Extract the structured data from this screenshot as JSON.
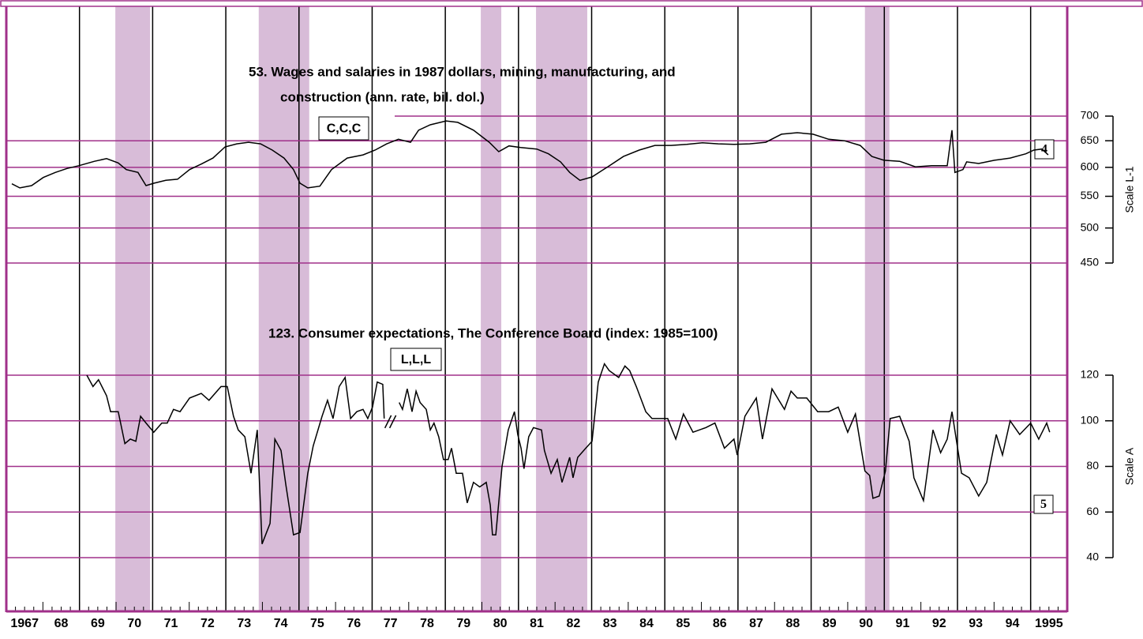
{
  "chart_data": {
    "type": "line",
    "xlim": [
      1967,
      1996
    ],
    "xticks": [
      {
        "value": 1967,
        "label": "1967"
      },
      {
        "value": 1968,
        "label": "68"
      },
      {
        "value": 1969,
        "label": "69"
      },
      {
        "value": 1970,
        "label": "70"
      },
      {
        "value": 1971,
        "label": "71"
      },
      {
        "value": 1972,
        "label": "72"
      },
      {
        "value": 1973,
        "label": "73"
      },
      {
        "value": 1974,
        "label": "74"
      },
      {
        "value": 1975,
        "label": "75"
      },
      {
        "value": 1976,
        "label": "76"
      },
      {
        "value": 1977,
        "label": "77"
      },
      {
        "value": 1978,
        "label": "78"
      },
      {
        "value": 1979,
        "label": "79"
      },
      {
        "value": 1980,
        "label": "80"
      },
      {
        "value": 1981,
        "label": "81"
      },
      {
        "value": 1982,
        "label": "82"
      },
      {
        "value": 1983,
        "label": "83"
      },
      {
        "value": 1984,
        "label": "84"
      },
      {
        "value": 1985,
        "label": "85"
      },
      {
        "value": 1986,
        "label": "86"
      },
      {
        "value": 1987,
        "label": "87"
      },
      {
        "value": 1988,
        "label": "88"
      },
      {
        "value": 1989,
        "label": "89"
      },
      {
        "value": 1990,
        "label": "90"
      },
      {
        "value": 1991,
        "label": "91"
      },
      {
        "value": 1992,
        "label": "92"
      },
      {
        "value": 1993,
        "label": "93"
      },
      {
        "value": 1994,
        "label": "94"
      },
      1995
    ],
    "shading": [
      [
        1969.98,
        1970.93
      ],
      [
        1973.9,
        1975.28
      ],
      [
        1979.97,
        1980.53
      ],
      [
        1981.48,
        1982.88
      ],
      [
        1990.47,
        1991.14
      ]
    ],
    "shading_color": "#d8bcd8",
    "grid_color": "#a0308a",
    "panels": [
      {
        "title": [
          "53. Wages and salaries in 1987 dollars, mining, manufacturing, and",
          "construction (ann. rate, bil. dol.)"
        ],
        "annotation": "C,C,C",
        "box_label": "4",
        "ylabel": "Scale L-1",
        "log_scale": true,
        "ylim": [
          450,
          700
        ],
        "yticks": [
          700,
          650,
          600,
          550,
          500,
          450
        ],
        "color": "#000000",
        "x": [
          1967.15,
          1967.37,
          1967.69,
          1968.01,
          1968.34,
          1968.66,
          1968.98,
          1969.41,
          1969.74,
          1970.06,
          1970.28,
          1970.6,
          1970.82,
          1971.03,
          1971.36,
          1971.68,
          1972.01,
          1972.33,
          1972.65,
          1972.98,
          1973.3,
          1973.62,
          1973.95,
          1974.27,
          1974.59,
          1974.85,
          1975.03,
          1975.24,
          1975.57,
          1975.89,
          1976.32,
          1976.75,
          1977.08,
          1977.4,
          1977.72,
          1978.05,
          1978.27,
          1978.59,
          1979.02,
          1979.34,
          1979.77,
          1980.2,
          1980.46,
          1980.74,
          1981.06,
          1981.5,
          1981.82,
          1982.15,
          1982.4,
          1982.68,
          1983.01,
          1983.44,
          1983.87,
          1984.3,
          1984.73,
          1985.17,
          1985.6,
          1986.03,
          1986.46,
          1986.89,
          1987.32,
          1987.76,
          1988.19,
          1988.62,
          1989.05,
          1989.48,
          1989.91,
          1990.34,
          1990.66,
          1990.99,
          1991.42,
          1991.85,
          1992.29,
          1992.72,
          1992.85,
          1992.93,
          1993.15,
          1993.25,
          1993.58,
          1994.01,
          1994.44,
          1994.87,
          1995.09,
          1995.31,
          1995.48
        ],
        "values": [
          571,
          564,
          568,
          582,
          591,
          598,
          603,
          611,
          616,
          608,
          596,
          591,
          568,
          572,
          577,
          579,
          596,
          606,
          617,
          638,
          644,
          647,
          644,
          632,
          617,
          596,
          572,
          564,
          567,
          596,
          617,
          623,
          632,
          644,
          653,
          647,
          671,
          682,
          690,
          687,
          671,
          647,
          629,
          640,
          637,
          634,
          625,
          610,
          591,
          577,
          583,
          601,
          620,
          632,
          641,
          641,
          643,
          646,
          644,
          643,
          644,
          647,
          663,
          666,
          663,
          653,
          650,
          641,
          620,
          613,
          611,
          601,
          603,
          603,
          671,
          591,
          596,
          610,
          607,
          613,
          617,
          625,
          632,
          634,
          623
        ]
      },
      {
        "title": [
          "123. Consumer expectations, The Conference Board (index: 1985=100)"
        ],
        "annotation": "L,L,L",
        "box_label": "5",
        "ylabel": "Scale A",
        "log_scale": false,
        "ylim": [
          40,
          120
        ],
        "yticks": [
          120,
          100,
          80,
          60,
          40
        ],
        "color": "#000000",
        "x": [
          1969.2,
          1969.37,
          1969.52,
          1969.74,
          1969.85,
          1970.06,
          1970.24,
          1970.39,
          1970.54,
          1970.67,
          1970.82,
          1971.03,
          1971.25,
          1971.4,
          1971.57,
          1971.75,
          1972.01,
          1972.33,
          1972.54,
          1972.87,
          1973.04,
          1973.21,
          1973.34,
          1973.52,
          1973.69,
          1973.86,
          1973.99,
          1974.21,
          1974.34,
          1974.51,
          1974.64,
          1974.85,
          1975.03,
          1975.24,
          1975.39,
          1975.63,
          1975.78,
          1975.93,
          1976.1,
          1976.26,
          1976.41,
          1976.58,
          1976.75,
          1976.88,
          1977.01,
          1977.14,
          1977.29,
          1977.33,
          1977.5,
          1977.74,
          1977.83,
          1977.96,
          1978.09,
          1978.2,
          1978.31,
          1978.48,
          1978.59,
          1978.69,
          1978.82,
          1978.95,
          1979.08,
          1979.17,
          1979.3,
          1979.47,
          1979.6,
          1979.77,
          1979.94,
          1980.12,
          1980.23,
          1980.29,
          1980.38,
          1980.55,
          1980.72,
          1980.89,
          1980.98,
          1981.07,
          1981.15,
          1981.28,
          1981.41,
          1981.63,
          1981.71,
          1981.89,
          1982.06,
          1982.19,
          1982.4,
          1982.49,
          1982.62,
          1982.84,
          1983.01,
          1983.18,
          1983.35,
          1983.48,
          1983.74,
          1983.91,
          1984.04,
          1984.22,
          1984.48,
          1984.65,
          1984.86,
          1985.08,
          1985.3,
          1985.51,
          1985.77,
          1986.12,
          1986.37,
          1986.63,
          1986.89,
          1986.98,
          1987.19,
          1987.5,
          1987.67,
          1987.93,
          1988.27,
          1988.45,
          1988.62,
          1988.88,
          1989.18,
          1989.48,
          1989.74,
          1990.0,
          1990.21,
          1990.47,
          1990.6,
          1990.69,
          1990.86,
          1991.03,
          1991.16,
          1991.42,
          1991.68,
          1991.81,
          1992.07,
          1992.33,
          1992.54,
          1992.72,
          1992.85,
          1993.11,
          1993.32,
          1993.58,
          1993.8,
          1994.06,
          1994.23,
          1994.44,
          1994.7,
          1995.0,
          1995.22,
          1995.44,
          1995.52
        ],
        "values": [
          120,
          115,
          118,
          111,
          104,
          104,
          90,
          92,
          91,
          102,
          99,
          95,
          99,
          99,
          105,
          104,
          110,
          112,
          109,
          115,
          115,
          102,
          96,
          93,
          77,
          96,
          46,
          55,
          92,
          87,
          72,
          50,
          51,
          77,
          89,
          102,
          109,
          101,
          115,
          119,
          101,
          104,
          105,
          101,
          106,
          117,
          116,
          101,
          null,
          108,
          105,
          114,
          104,
          113,
          108,
          105,
          96,
          99,
          93,
          83,
          83,
          88,
          77,
          77,
          64,
          73,
          71,
          73,
          63,
          50,
          50,
          80,
          96,
          104,
          94,
          88,
          79,
          93,
          97,
          96,
          87,
          77,
          83,
          73,
          84,
          75,
          84,
          88,
          91,
          117,
          125,
          122,
          119,
          124,
          122,
          115,
          104,
          101,
          101,
          101,
          92,
          103,
          95,
          97,
          99,
          88,
          92,
          85,
          102,
          110,
          92,
          114,
          105,
          113,
          110,
          110,
          104,
          104,
          106,
          95,
          103,
          78,
          76,
          66,
          67,
          78,
          101,
          102,
          91,
          75,
          65,
          96,
          86,
          92,
          104,
          77,
          75,
          67,
          73,
          94,
          85,
          100,
          94,
          99,
          92,
          99,
          95
        ]
      }
    ]
  }
}
